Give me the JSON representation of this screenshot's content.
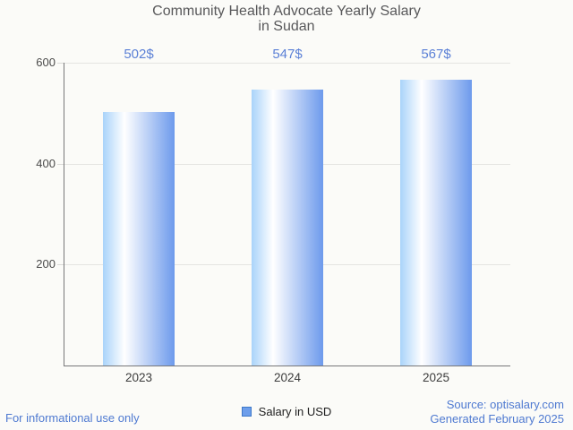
{
  "chart_data": {
    "type": "bar",
    "title": "Community Health Advocate Yearly Salary in Sudan",
    "title_line1": "Community Health Advocate Yearly Salary",
    "title_line2": "in Sudan",
    "categories": [
      "2023",
      "2024",
      "2025"
    ],
    "series": [
      {
        "name": "Salary in USD",
        "values": [
          502,
          547,
          567
        ]
      }
    ],
    "value_labels": [
      "502$",
      "547$",
      "567$"
    ],
    "xlabel": "",
    "ylabel": "",
    "ylim": [
      0,
      600
    ],
    "yticks": [
      200,
      400,
      600
    ],
    "grid": true,
    "legend_position": "bottom-center",
    "bar_gradient": [
      "#a9d3fa",
      "#ffffff",
      "#6d9aec"
    ],
    "annotation_color": "#5b80d6"
  },
  "legend": {
    "label": "Salary in USD",
    "swatch_fill": "#6d9eeb",
    "swatch_border": "#3d78c9"
  },
  "footer": {
    "left_note": "For informational use only",
    "source": "Source: optisalary.com",
    "generated": "Generated February 2025",
    "link_color": "#4f7ad1"
  }
}
